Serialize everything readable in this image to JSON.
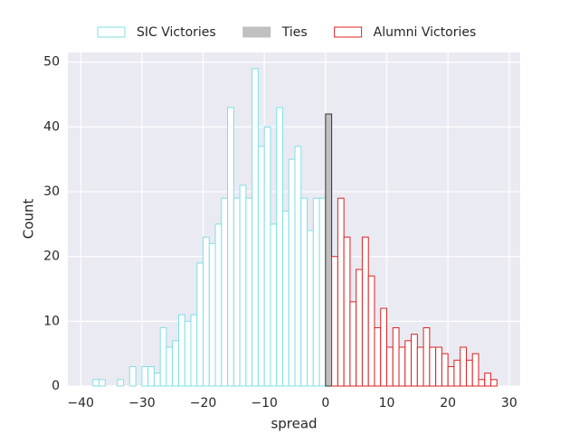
{
  "chart_data": {
    "type": "histogram",
    "xlabel": "spread",
    "ylabel": "Count",
    "xlim": [
      -42.1,
      31.8
    ],
    "ylim": [
      0,
      51.5
    ],
    "xticks": [
      {
        "value": -40,
        "label": "−40"
      },
      {
        "value": -30,
        "label": "−30"
      },
      {
        "value": -20,
        "label": "−20"
      },
      {
        "value": -10,
        "label": "−10"
      },
      0,
      10,
      20,
      30
    ],
    "yticks": [
      0,
      10,
      20,
      30,
      40,
      50
    ],
    "grid": true,
    "legend": "top",
    "series": [
      {
        "name": "SIC Victories",
        "color": "#7fdfe6",
        "filled": false,
        "bins": [
          -38,
          -37,
          -36,
          -35,
          -34,
          -33,
          -32,
          -31,
          -30,
          -29,
          -28,
          -27,
          -26,
          -25,
          -24,
          -23,
          -22,
          -21,
          -20,
          -19,
          -18,
          -17,
          -16,
          -15,
          -14,
          -13,
          -12,
          -11,
          -10,
          -9,
          -8,
          -7,
          -6,
          -5,
          -4,
          -3,
          -2,
          -1,
          0
        ],
        "values": [
          1,
          1,
          0,
          0,
          1,
          0,
          3,
          0,
          3,
          3,
          2,
          9,
          6,
          7,
          11,
          10,
          11,
          19,
          23,
          22,
          25,
          29,
          43,
          29,
          31,
          29,
          49,
          37,
          40,
          25,
          43,
          27,
          35,
          37,
          29,
          24,
          29,
          29
        ]
      },
      {
        "name": "Ties",
        "color": "#c0c0c0",
        "filled": true,
        "bins": [
          0,
          1
        ],
        "values": [
          42
        ]
      },
      {
        "name": "Alumni Victories",
        "color": "#dd2222",
        "filled": false,
        "bins": [
          1,
          2,
          3,
          4,
          5,
          6,
          7,
          8,
          9,
          10,
          11,
          12,
          13,
          14,
          15,
          16,
          17,
          18,
          19,
          20,
          21,
          22,
          23,
          24,
          25,
          26,
          27,
          28
        ],
        "values": [
          20,
          29,
          23,
          13,
          18,
          23,
          17,
          9,
          12,
          6,
          9,
          6,
          7,
          8,
          6,
          9,
          6,
          6,
          5,
          3,
          4,
          6,
          4,
          5,
          1,
          2,
          1
        ]
      }
    ]
  }
}
